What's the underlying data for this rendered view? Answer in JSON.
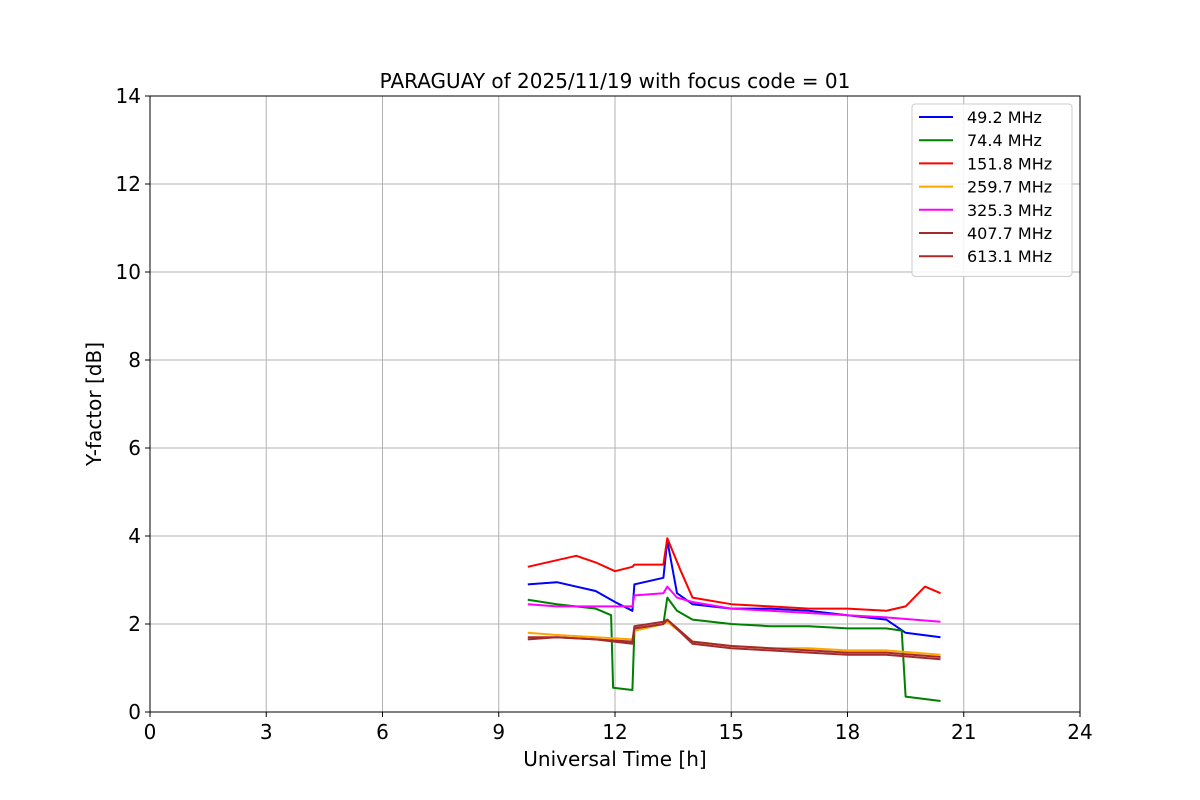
{
  "chart_data": {
    "type": "line",
    "title": "PARAGUAY of 2025/11/19 with focus code = 01",
    "xlabel": "Universal Time [h]",
    "ylabel": "Y-factor [dB]",
    "xlim": [
      0,
      24
    ],
    "ylim": [
      0,
      14
    ],
    "xticks": [
      "0",
      "3",
      "6",
      "9",
      "12",
      "15",
      "18",
      "21",
      "24"
    ],
    "yticks": [
      "0",
      "2",
      "4",
      "6",
      "8",
      "10",
      "12",
      "14"
    ],
    "grid": true,
    "legend_position": "top-right",
    "series": [
      {
        "name": " 49.2 MHz",
        "color": "#0000ff",
        "points": [
          [
            9.75,
            2.9
          ],
          [
            10.5,
            2.95
          ],
          [
            11.5,
            2.75
          ],
          [
            12.0,
            2.5
          ],
          [
            12.45,
            2.3
          ],
          [
            12.5,
            2.9
          ],
          [
            13.25,
            3.05
          ],
          [
            13.35,
            3.9
          ],
          [
            13.6,
            2.7
          ],
          [
            14.0,
            2.45
          ],
          [
            15.0,
            2.35
          ],
          [
            16.0,
            2.35
          ],
          [
            17.0,
            2.3
          ],
          [
            18.0,
            2.2
          ],
          [
            19.0,
            2.1
          ],
          [
            19.5,
            1.8
          ],
          [
            20.4,
            1.7
          ]
        ]
      },
      {
        "name": " 74.4 MHz",
        "color": "#008000",
        "points": [
          [
            9.75,
            2.55
          ],
          [
            10.5,
            2.45
          ],
          [
            11.5,
            2.35
          ],
          [
            11.9,
            2.2
          ],
          [
            11.95,
            0.55
          ],
          [
            12.45,
            0.5
          ],
          [
            12.5,
            1.85
          ],
          [
            13.25,
            2.0
          ],
          [
            13.35,
            2.6
          ],
          [
            13.6,
            2.3
          ],
          [
            14.0,
            2.1
          ],
          [
            15.0,
            2.0
          ],
          [
            16.0,
            1.95
          ],
          [
            17.0,
            1.95
          ],
          [
            18.0,
            1.9
          ],
          [
            19.0,
            1.9
          ],
          [
            19.4,
            1.85
          ],
          [
            19.5,
            0.35
          ],
          [
            20.4,
            0.25
          ]
        ]
      },
      {
        "name": " 151.8 MHz",
        "color": "#ff0000",
        "points": [
          [
            9.75,
            3.3
          ],
          [
            10.5,
            3.45
          ],
          [
            11.0,
            3.55
          ],
          [
            11.5,
            3.4
          ],
          [
            12.0,
            3.2
          ],
          [
            12.45,
            3.3
          ],
          [
            12.5,
            3.35
          ],
          [
            13.25,
            3.35
          ],
          [
            13.35,
            3.95
          ],
          [
            13.7,
            3.2
          ],
          [
            14.0,
            2.6
          ],
          [
            15.0,
            2.45
          ],
          [
            16.0,
            2.4
          ],
          [
            17.0,
            2.35
          ],
          [
            18.0,
            2.35
          ],
          [
            19.0,
            2.3
          ],
          [
            19.5,
            2.4
          ],
          [
            20.0,
            2.85
          ],
          [
            20.4,
            2.7
          ]
        ]
      },
      {
        "name": " 259.7 MHz",
        "color": "#ffa500",
        "points": [
          [
            9.75,
            1.8
          ],
          [
            10.5,
            1.75
          ],
          [
            11.5,
            1.7
          ],
          [
            12.45,
            1.65
          ],
          [
            12.5,
            1.85
          ],
          [
            13.25,
            2.0
          ],
          [
            13.35,
            2.05
          ],
          [
            14.0,
            1.6
          ],
          [
            15.0,
            1.5
          ],
          [
            16.0,
            1.45
          ],
          [
            17.0,
            1.45
          ],
          [
            18.0,
            1.4
          ],
          [
            19.0,
            1.4
          ],
          [
            20.4,
            1.3
          ]
        ]
      },
      {
        "name": " 325.3 MHz",
        "color": "#ff00ff",
        "points": [
          [
            9.75,
            2.45
          ],
          [
            10.5,
            2.4
          ],
          [
            11.5,
            2.4
          ],
          [
            12.45,
            2.4
          ],
          [
            12.5,
            2.65
          ],
          [
            13.25,
            2.7
          ],
          [
            13.35,
            2.85
          ],
          [
            13.6,
            2.6
          ],
          [
            14.0,
            2.5
          ],
          [
            15.0,
            2.35
          ],
          [
            16.0,
            2.3
          ],
          [
            17.0,
            2.25
          ],
          [
            18.0,
            2.2
          ],
          [
            19.0,
            2.15
          ],
          [
            20.4,
            2.05
          ]
        ]
      },
      {
        "name": " 407.7 MHz",
        "color": "#a52a2a",
        "points": [
          [
            9.75,
            1.7
          ],
          [
            10.5,
            1.7
          ],
          [
            11.5,
            1.65
          ],
          [
            12.45,
            1.6
          ],
          [
            12.5,
            1.95
          ],
          [
            13.25,
            2.05
          ],
          [
            13.35,
            2.1
          ],
          [
            14.0,
            1.6
          ],
          [
            15.0,
            1.5
          ],
          [
            16.0,
            1.45
          ],
          [
            17.0,
            1.4
          ],
          [
            18.0,
            1.35
          ],
          [
            19.0,
            1.35
          ],
          [
            20.4,
            1.25
          ]
        ]
      },
      {
        "name": " 613.1 MHz",
        "color": "#a52a2a",
        "points": [
          [
            9.75,
            1.65
          ],
          [
            10.5,
            1.7
          ],
          [
            11.5,
            1.65
          ],
          [
            12.45,
            1.55
          ],
          [
            12.5,
            1.9
          ],
          [
            13.25,
            2.0
          ],
          [
            13.35,
            2.1
          ],
          [
            14.0,
            1.55
          ],
          [
            15.0,
            1.45
          ],
          [
            16.0,
            1.4
          ],
          [
            17.0,
            1.35
          ],
          [
            18.0,
            1.3
          ],
          [
            19.0,
            1.3
          ],
          [
            20.4,
            1.2
          ]
        ]
      }
    ]
  }
}
